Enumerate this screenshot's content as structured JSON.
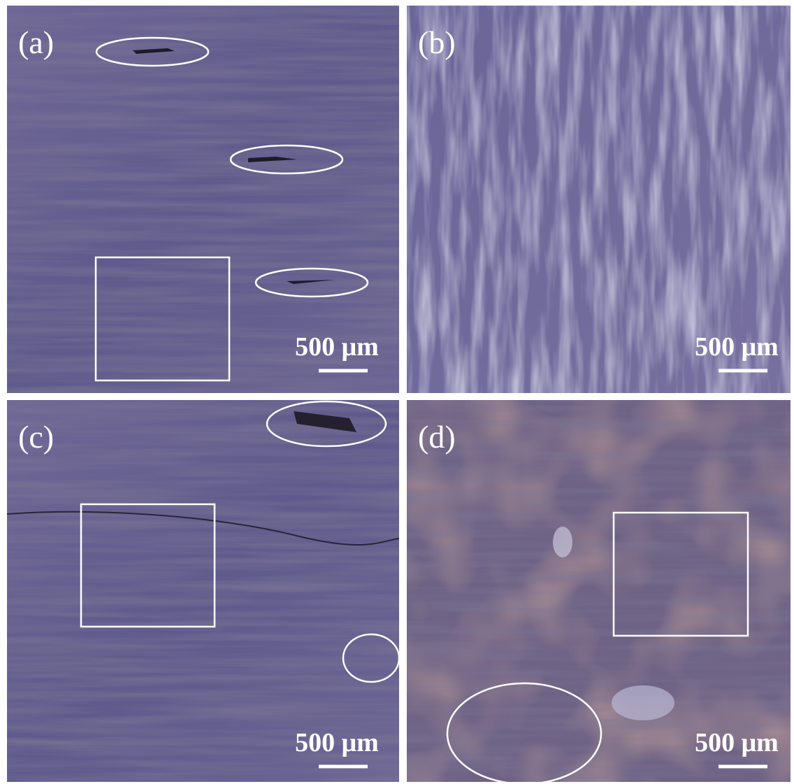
{
  "panels": [
    {
      "label": "(a)",
      "scale_bar": "500 μm"
    },
    {
      "label": "(b)",
      "scale_bar": "500 μm"
    },
    {
      "label": "(c)",
      "scale_bar": "500 μm"
    },
    {
      "label": "(d)",
      "scale_bar": "500 μm"
    }
  ]
}
